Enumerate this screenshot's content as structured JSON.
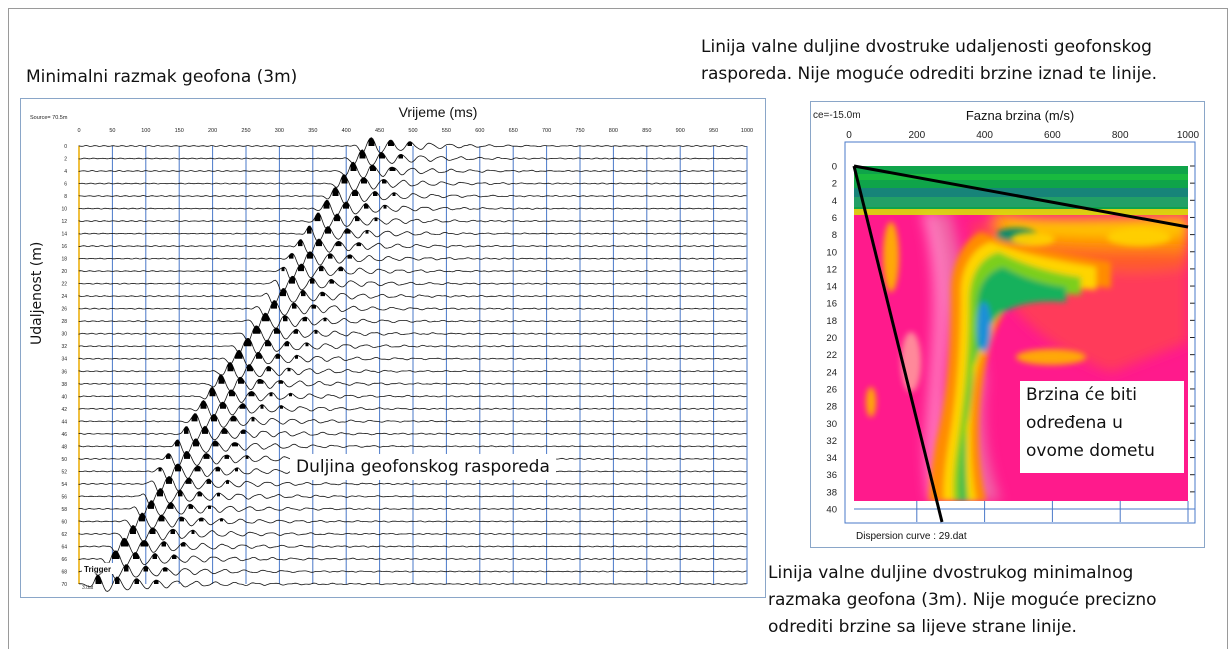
{
  "annotations": {
    "min_spacing": "Minimalni razmak geofona (3m)",
    "top_right_line1": "Linija valne duljine dvostruke udaljenosti geofonskog",
    "top_right_line2": "rasporeda. Nije moguće odrediti brzine iznad te linije.",
    "bottom_right_line1": "Linija valne duljine dvostrukog minimalnog",
    "bottom_right_line2": "razmaka geofona (3m). Nije moguće precizno",
    "bottom_right_line3": "odrediti brzine sa lijeve strane linije.",
    "spread_length": "Duljina geofonskog rasporeda",
    "velocity_line1": "Brzina će biti",
    "velocity_line2": "određena u",
    "velocity_line3": "ovome dometu"
  },
  "seismogram": {
    "source": "Source= 70.5m",
    "title": "Vrijeme (ms)",
    "ylabel": "Udaljenost (m)",
    "x_ticks": [
      "0",
      "50",
      "100",
      "150",
      "200",
      "250",
      "300",
      "350",
      "400",
      "450",
      "500",
      "550",
      "600",
      "650",
      "700",
      "750",
      "800",
      "850",
      "900",
      "950",
      "1000"
    ],
    "y_ticks": [
      "0",
      "2",
      "4",
      "6",
      "8",
      "10",
      "12",
      "14",
      "16",
      "18",
      "20",
      "22",
      "24",
      "26",
      "28",
      "30",
      "32",
      "34",
      "36",
      "38",
      "40",
      "42",
      "44",
      "46",
      "48",
      "50",
      "52",
      "54",
      "56",
      "58",
      "60",
      "62",
      "64",
      "66",
      "68",
      "70"
    ],
    "trigger": "Trigger",
    "file": "3.dat"
  },
  "dispersion": {
    "source": "ce=-15.0m",
    "title": "Fazna brzina (m/s)",
    "x_ticks": [
      "0",
      "200",
      "400",
      "600",
      "800",
      "1000"
    ],
    "y_ticks": [
      "0",
      "2",
      "4",
      "6",
      "8",
      "10",
      "12",
      "14",
      "16",
      "18",
      "20",
      "22",
      "24",
      "26",
      "28",
      "30",
      "32",
      "34",
      "36",
      "38",
      "40"
    ],
    "caption": "Dispersion curve : 29.dat"
  }
}
